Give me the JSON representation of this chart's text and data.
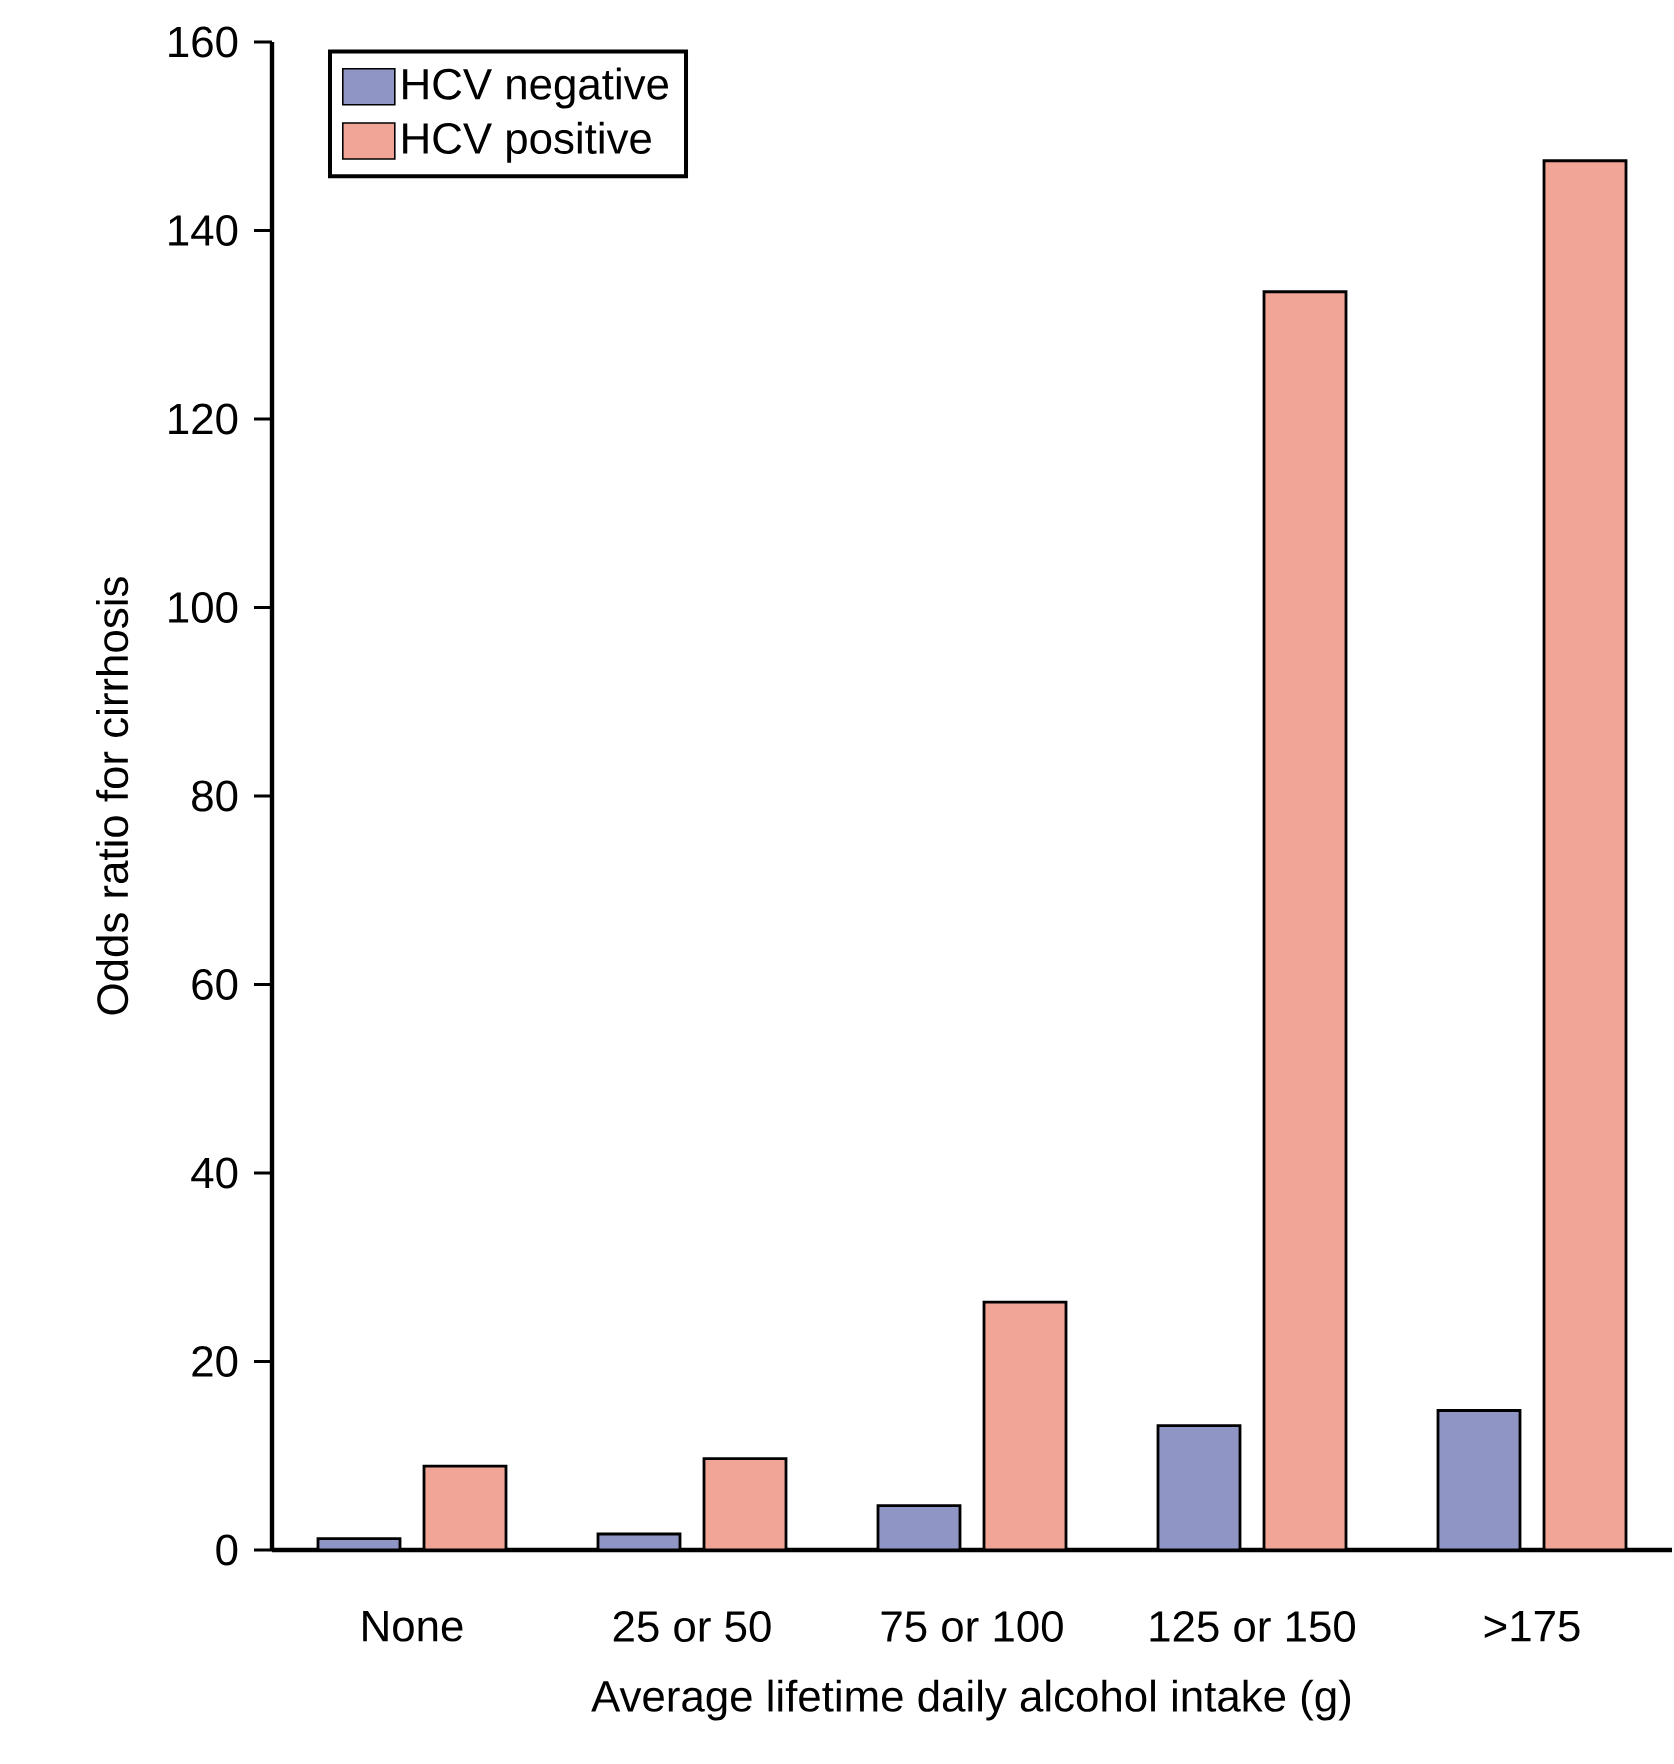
{
  "chart_data": {
    "type": "bar",
    "xlabel": "Average lifetime daily alcohol intake (g)",
    "ylabel": "Odds ratio for cirrhosis",
    "categories": [
      "None",
      "25 or 50",
      "75 or 100",
      "125 or 150",
      ">175"
    ],
    "series": [
      {
        "name": "HCV negative",
        "color": "#8f96c6",
        "values": [
          1.2,
          1.7,
          4.7,
          13.2,
          14.8
        ]
      },
      {
        "name": "HCV positive",
        "color": "#f0a597",
        "values": [
          8.9,
          9.7,
          26.3,
          133.5,
          147.4
        ]
      }
    ],
    "ylim": [
      0,
      160
    ],
    "yticks": [
      0,
      20,
      40,
      60,
      80,
      100,
      120,
      140,
      160
    ],
    "grid": false,
    "legend": "top left"
  }
}
